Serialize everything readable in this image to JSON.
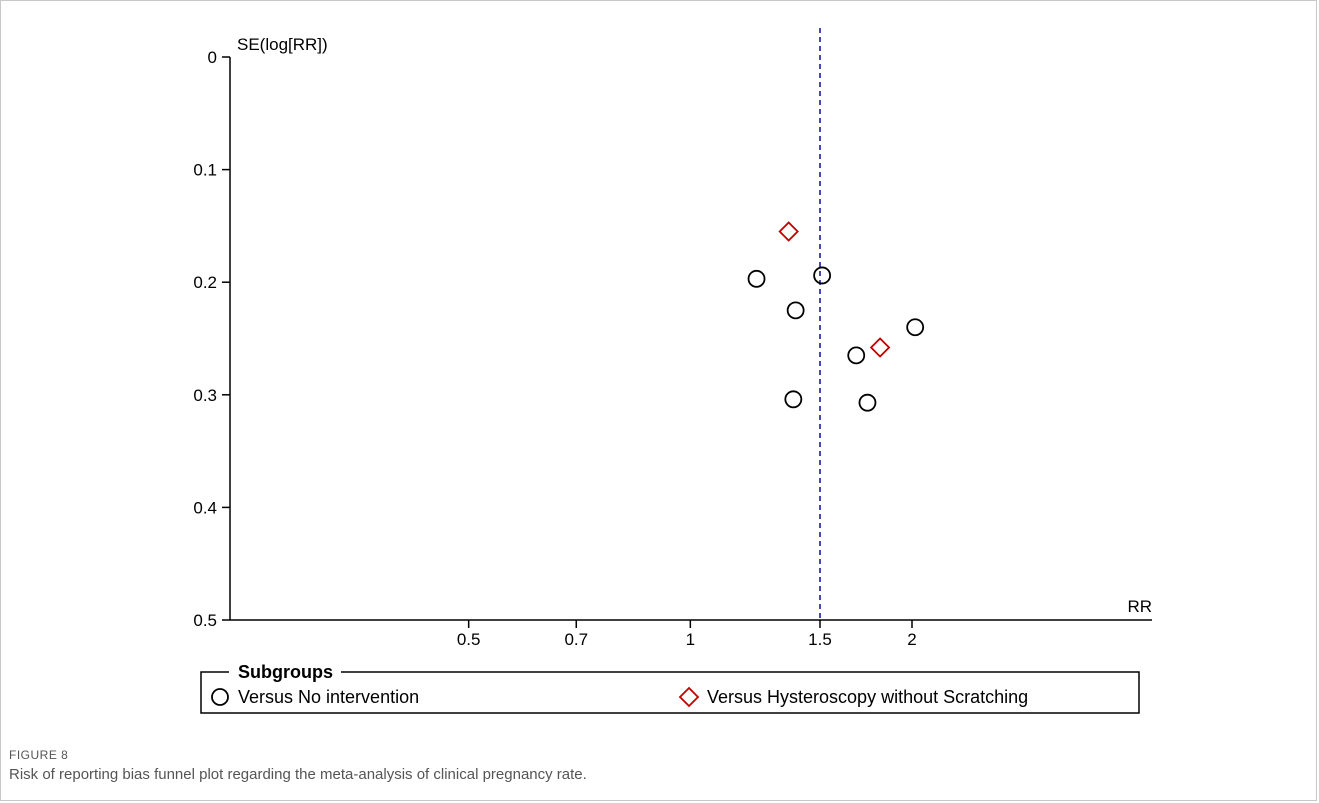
{
  "figure": {
    "label": "FIGURE 8",
    "caption": "Risk of reporting bias funnel plot regarding the meta-analysis of clinical pregnancy rate."
  },
  "colors": {
    "axis": "#000000",
    "reference_line": "#1a1aa6",
    "group1": "#000000",
    "group2": "#c00000",
    "caption": "#555555"
  },
  "chart_data": {
    "type": "scatter",
    "title": "",
    "xlabel": "RR",
    "ylabel": "SE(log[RR])",
    "xscale": "log",
    "xticks": [
      0.5,
      0.7,
      1,
      1.5,
      2
    ],
    "xtick_labels": [
      "0.5",
      "0.7",
      "1",
      "1.5",
      "2"
    ],
    "yticks": [
      0,
      0.1,
      0.2,
      0.3,
      0.4,
      0.5
    ],
    "ytick_labels": [
      "0",
      "0.1",
      "0.2",
      "0.3",
      "0.4",
      "0.5"
    ],
    "ylim": [
      0,
      0.5
    ],
    "y_inverted": true,
    "xlim": [
      0.3,
      3.0
    ],
    "reference_line": {
      "x": 1.5,
      "style": "dashed"
    },
    "grid": false,
    "legend": {
      "title": "Subgroups",
      "placement": "bottom"
    },
    "series": [
      {
        "name": "Versus No intervention",
        "marker": "circle",
        "points": [
          {
            "x": 1.23,
            "y": 0.197
          },
          {
            "x": 1.51,
            "y": 0.194
          },
          {
            "x": 1.39,
            "y": 0.225
          },
          {
            "x": 2.02,
            "y": 0.24
          },
          {
            "x": 1.68,
            "y": 0.265
          },
          {
            "x": 1.38,
            "y": 0.304
          },
          {
            "x": 1.74,
            "y": 0.307
          }
        ]
      },
      {
        "name": "Versus Hysteroscopy without Scratching",
        "marker": "diamond",
        "points": [
          {
            "x": 1.36,
            "y": 0.155
          },
          {
            "x": 1.81,
            "y": 0.258
          }
        ]
      }
    ]
  }
}
